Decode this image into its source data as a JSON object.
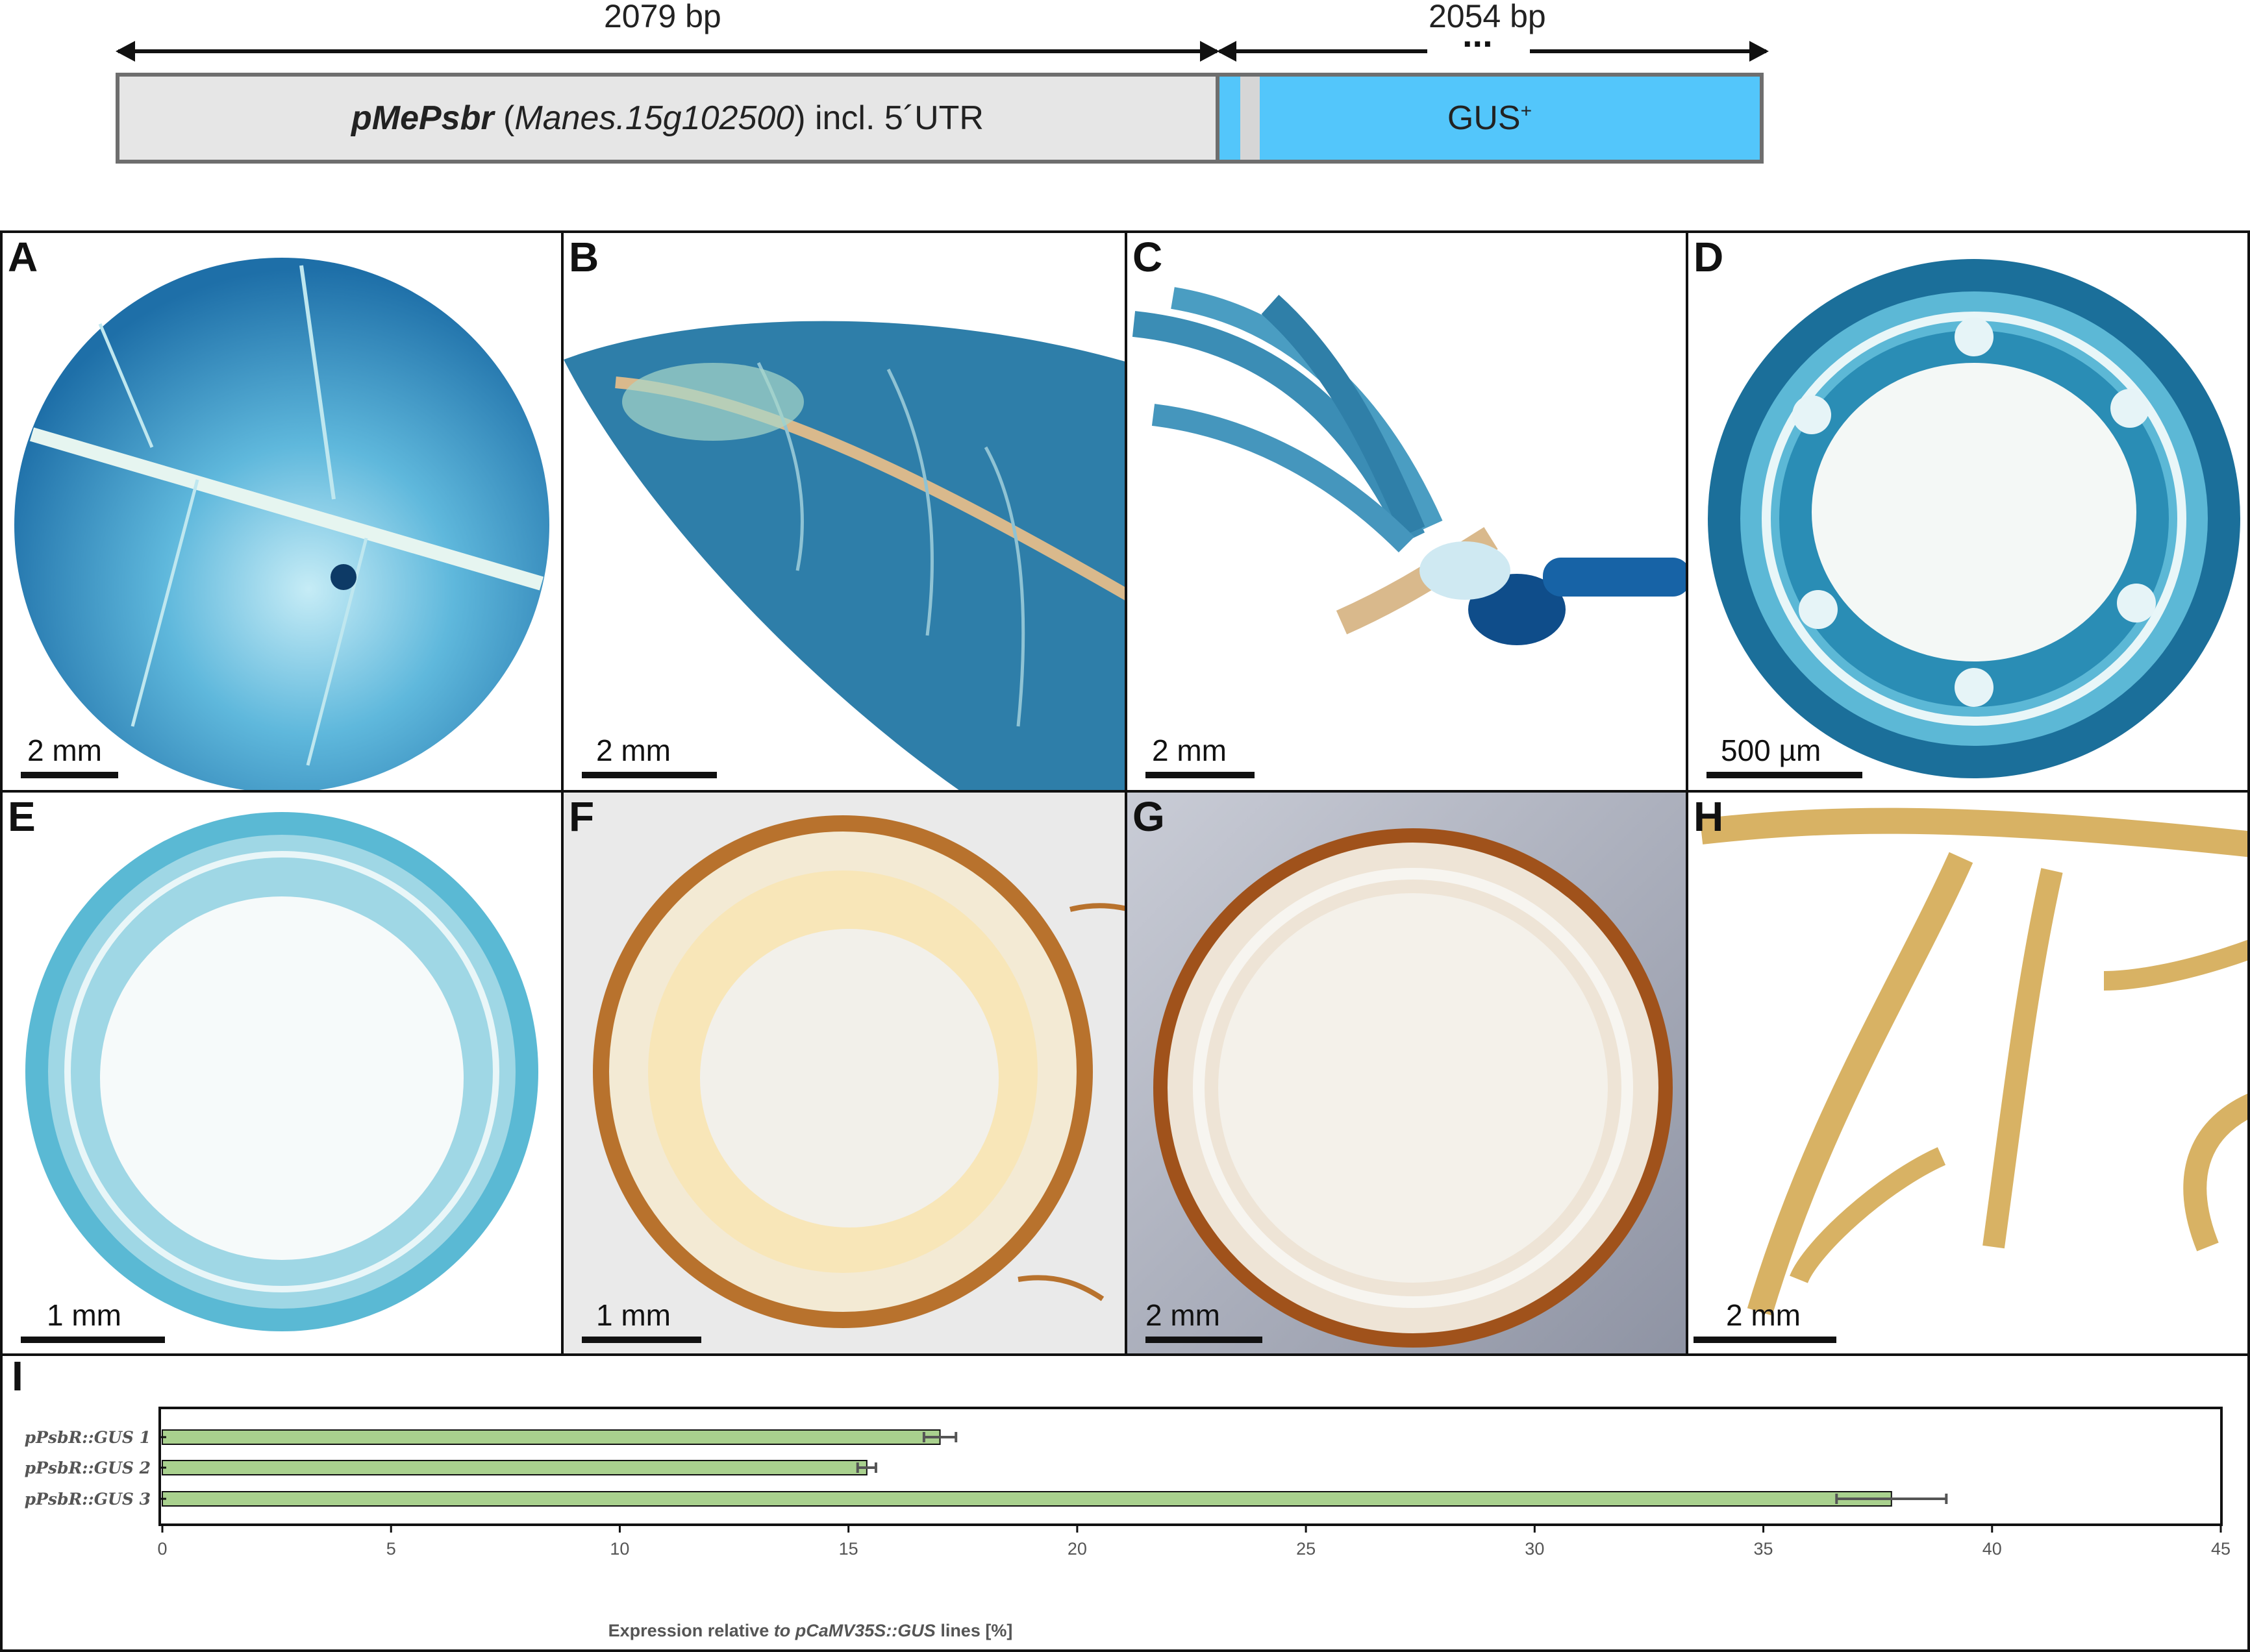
{
  "construct": {
    "promoter_length": "2079 bp",
    "gus_length": "2054 bp",
    "dots": "...",
    "promoter_name": "pMePsbr",
    "promoter_gene_open": " (",
    "promoter_gene": "Manes.15g102500",
    "promoter_gene_close": ") incl. 5´UTR",
    "gus_label": "GUS",
    "gus_superscript": "+",
    "colors": {
      "promoter_fill": "#e6e6e6",
      "gus_fill": "#53c6fb",
      "border": "#6e6e6e"
    }
  },
  "panels": [
    {
      "letter": "A",
      "scale_label": "2 mm"
    },
    {
      "letter": "B",
      "scale_label": "2 mm"
    },
    {
      "letter": "C",
      "scale_label": "2 mm"
    },
    {
      "letter": "D",
      "scale_label": "500 µm"
    },
    {
      "letter": "E",
      "scale_label": "1 mm"
    },
    {
      "letter": "F",
      "scale_label": "1 mm"
    },
    {
      "letter": "G",
      "scale_label": "2 mm"
    },
    {
      "letter": "H",
      "scale_label": "2 mm"
    }
  ],
  "panel_i": {
    "letter": "I"
  },
  "chart_data": {
    "type": "bar",
    "orientation": "horizontal",
    "categories": [
      "pPsbR::GUS 1",
      "pPsbR::GUS 2",
      "pPsbR::GUS 3"
    ],
    "values": [
      17.0,
      15.4,
      37.8
    ],
    "errors": [
      0.35,
      0.2,
      1.2
    ],
    "xlabel_prefix": "Expression relative ",
    "xlabel_italic": "to pCaMV35S::GUS",
    "xlabel_suffix": " lines [%]",
    "xlim": [
      0,
      45
    ],
    "xticks": [
      0,
      5,
      10,
      15,
      20,
      25,
      30,
      35,
      40,
      45
    ],
    "grid": false,
    "colors": {
      "bar_fill": "#a9d18e",
      "bar_stroke": "#111111",
      "error": "#555555"
    }
  }
}
